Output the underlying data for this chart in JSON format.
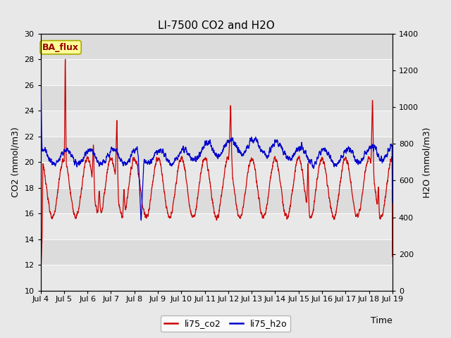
{
  "title": "LI-7500 CO2 and H2O",
  "xlabel": "Time",
  "ylabel_left": "CO2 (mmol/m3)",
  "ylabel_right": "H2O (mmol/m3)",
  "ylim_left": [
    10,
    30
  ],
  "ylim_right": [
    0,
    1400
  ],
  "yticks_left": [
    10,
    12,
    14,
    16,
    18,
    20,
    22,
    24,
    26,
    28,
    30
  ],
  "yticks_right": [
    0,
    200,
    400,
    600,
    800,
    1000,
    1200,
    1400
  ],
  "x_tick_labels": [
    "Jul 4",
    "Jul 5",
    "Jul 6",
    "Jul 7",
    "Jul 8",
    "Jul 9",
    "Jul 10",
    "Jul 11",
    "Jul 12",
    "Jul 13",
    "Jul 14",
    "Jul 15",
    "Jul 16",
    "Jul 17",
    "Jul 18",
    "Jul 19"
  ],
  "co2_color": "#cc0000",
  "h2o_color": "#0000cc",
  "bg_color": "#e8e8e8",
  "plot_bg_color": "#dcdcdc",
  "plot_bg_alt": "#e8e8e8",
  "annotation_text": "BA_flux",
  "annotation_bg": "#ffff99",
  "annotation_border": "#aaaa00",
  "legend_co2": "li75_co2",
  "legend_h2o": "li75_h2o",
  "title_fontsize": 11,
  "label_fontsize": 9,
  "tick_fontsize": 8,
  "linewidth": 0.9
}
